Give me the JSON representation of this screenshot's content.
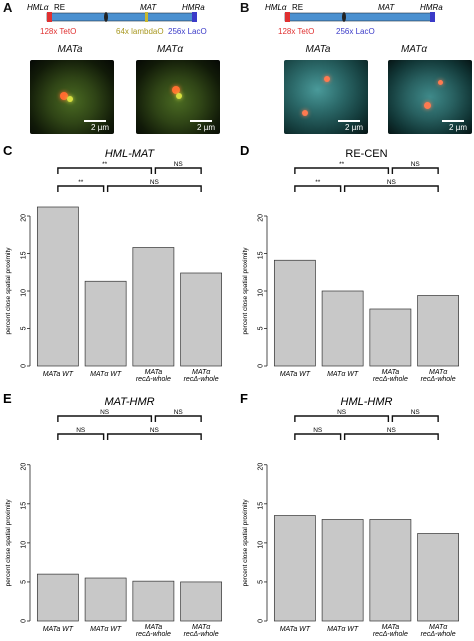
{
  "panels": {
    "A": {
      "letter": "A",
      "loci": [
        "HMLα",
        "RE",
        "MAT",
        "HMRa"
      ],
      "arrays": [
        "128x TetO",
        "64x lambdaO",
        "256x LacO"
      ],
      "strains": [
        "MATa",
        "MATα"
      ],
      "scale": "2 µm"
    },
    "B": {
      "letter": "B",
      "loci": [
        "HMLα",
        "RE",
        "MAT",
        "HMRa"
      ],
      "arrays": [
        "128x TetO",
        "256x LacO"
      ],
      "strains": [
        "MATa",
        "MATα"
      ],
      "scale": "2 µm"
    }
  },
  "colors": {
    "bar_fill": "#c8c8c8",
    "chromosome": "#4a90d0",
    "teto": "#e03030",
    "lambdao": "#c8b830",
    "laco": "#3a3ac8"
  },
  "chart_data": [
    {
      "type": "bar",
      "letter": "C",
      "title": "HML-MAT",
      "ylabel": "percent close spatial proximity",
      "ylim": [
        0,
        20
      ],
      "yticks": [
        0,
        5,
        10,
        15,
        20
      ],
      "categories": [
        "MATa WT",
        "MATα WT",
        "MATa recΔ-whole",
        "MATα recΔ-whole"
      ],
      "values": [
        21.2,
        11.3,
        15.8,
        12.4
      ],
      "sig_top": [
        "**",
        "NS"
      ],
      "sig_bottom": [
        "**",
        "NS"
      ],
      "grid": false
    },
    {
      "type": "bar",
      "letter": "D",
      "title": "RE-CEN",
      "ylabel": "percent close spatial proximity",
      "ylim": [
        0,
        20
      ],
      "yticks": [
        0,
        5,
        10,
        15,
        20
      ],
      "categories": [
        "MATa WT",
        "MATα WT",
        "MATa recΔ-whole",
        "MATα recΔ-whole"
      ],
      "values": [
        14.1,
        10.0,
        7.6,
        9.4
      ],
      "sig_top": [
        "**",
        "NS"
      ],
      "sig_bottom": [
        "**",
        "NS"
      ],
      "grid": false
    },
    {
      "type": "bar",
      "letter": "E",
      "title": "MAT-HMR",
      "ylabel": "percent close spatial proximity",
      "ylim": [
        0,
        20
      ],
      "yticks": [
        0,
        5,
        10,
        15,
        20
      ],
      "categories": [
        "MATa WT",
        "MATα WT",
        "MATa recΔ-whole",
        "MATα recΔ-whole"
      ],
      "values": [
        6.0,
        5.5,
        5.1,
        5.0
      ],
      "sig_top": [
        "NS",
        "NS"
      ],
      "sig_bottom": [
        "NS",
        "NS"
      ],
      "grid": false
    },
    {
      "type": "bar",
      "letter": "F",
      "title": "HML-HMR",
      "ylabel": "percent close spatial proximity",
      "ylim": [
        0,
        20
      ],
      "yticks": [
        0,
        5,
        10,
        15,
        20
      ],
      "categories": [
        "MATa WT",
        "MATα WT",
        "MATa recΔ-whole",
        "MATα recΔ-whole"
      ],
      "values": [
        13.5,
        13.0,
        13.0,
        11.2
      ],
      "sig_top": [
        "NS",
        "NS"
      ],
      "sig_bottom": [
        "NS",
        "NS"
      ],
      "grid": false
    }
  ]
}
